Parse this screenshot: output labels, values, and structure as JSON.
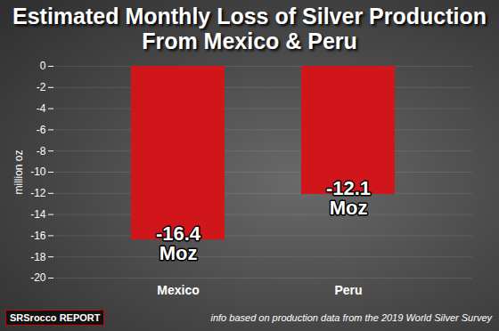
{
  "chart_data": {
    "type": "bar",
    "title": "Estimated Monthly Loss of Silver Production\nFrom Mexico & Peru",
    "categories": [
      "Mexico",
      "Peru"
    ],
    "values": [
      -16.4,
      -12.1
    ],
    "value_labels": [
      "-16.4\nMoz",
      "-12.1\nMoz"
    ],
    "data_labels": true,
    "color": "#d0161b",
    "y_label": "million oz",
    "ylim": [
      -20,
      0
    ],
    "yticks": [
      -20,
      -18,
      -16,
      -14,
      -12,
      -10,
      -8,
      -6,
      -4,
      -2,
      0
    ],
    "grid": true,
    "caption": "info based on production data from the 2019 World Silver Survey",
    "logo": "SRSrocco REPORT"
  }
}
